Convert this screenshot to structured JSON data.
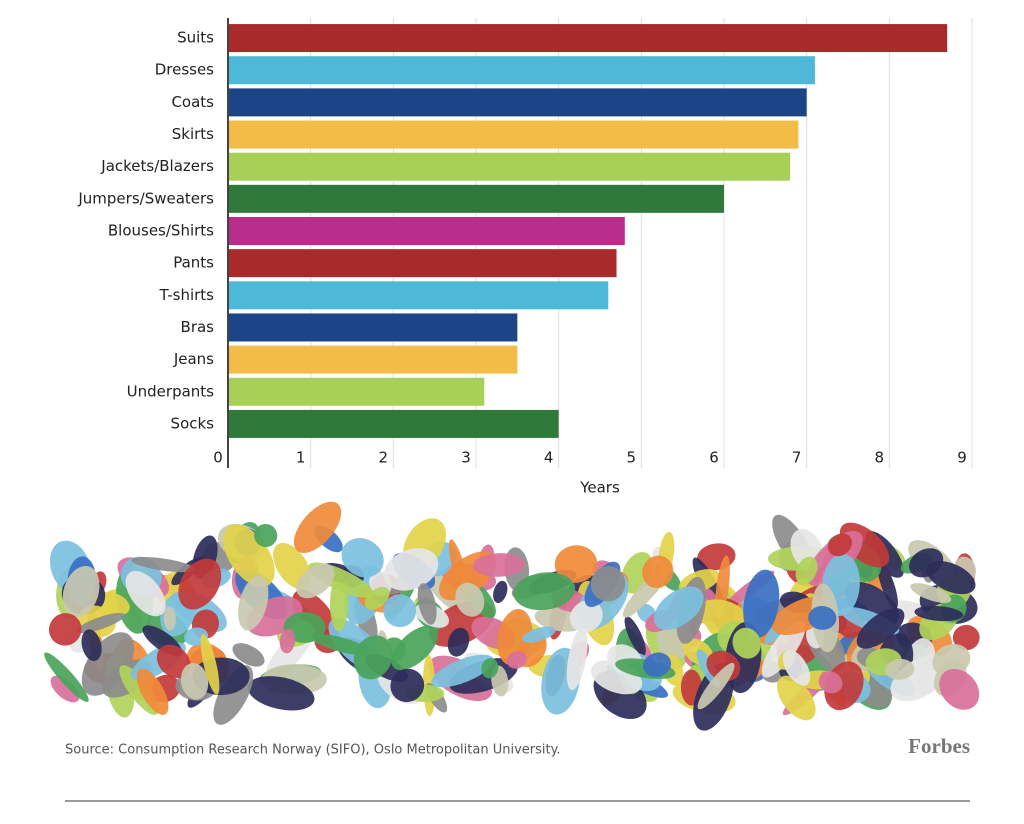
{
  "chart_data": {
    "type": "bar",
    "orientation": "horizontal",
    "categories": [
      "Suits",
      "Dresses",
      "Coats",
      "Skirts",
      "Jackets/Blazers",
      "Jumpers/Sweaters",
      "Blouses/Shirts",
      "Pants",
      "T-shirts",
      "Bras",
      "Jeans",
      "Underpants",
      "Socks"
    ],
    "values": [
      8.7,
      7.1,
      7.0,
      6.9,
      6.8,
      6.0,
      4.8,
      4.7,
      4.6,
      3.5,
      3.5,
      3.1,
      4.0
    ],
    "colors": [
      "#a92a2a",
      "#4db8d8",
      "#1b4586",
      "#f2bc46",
      "#a8cf58",
      "#2f7a3b",
      "#b92d8c",
      "#a92a2a",
      "#4db8d8",
      "#1b4586",
      "#f2bc46",
      "#a8cf58",
      "#2f7a3b"
    ],
    "x_label": "Years",
    "xlim": [
      0,
      9
    ],
    "xticks": [
      0,
      1,
      2,
      3,
      4,
      5,
      6,
      7,
      8,
      9
    ],
    "grid": true,
    "source": "Source: Consumption Research Norway (SIFO), Oslo Metropolitan University.",
    "logo": "Forbes"
  }
}
